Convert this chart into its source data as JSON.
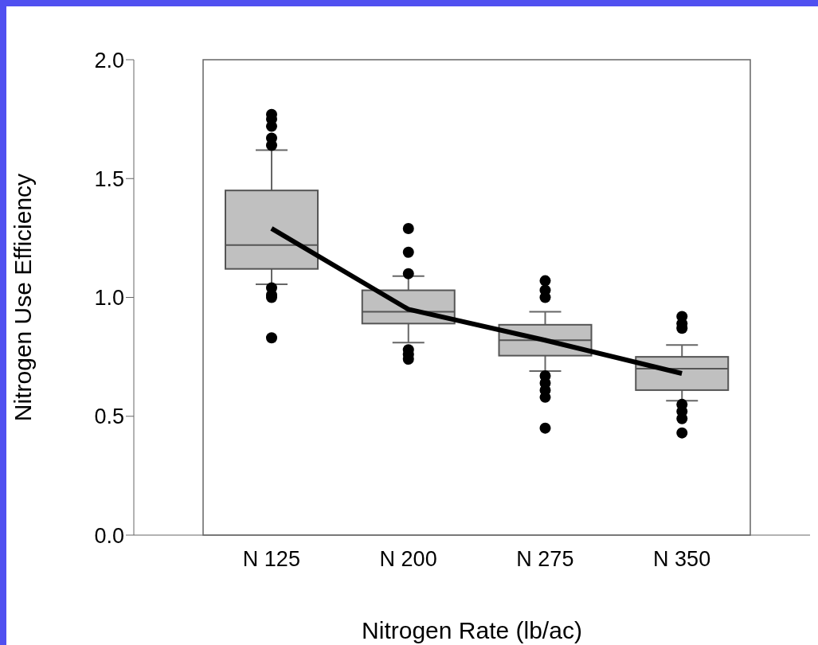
{
  "chart_data": {
    "type": "box",
    "xlabel": "Nitrogen Rate (lb/ac)",
    "ylabel": "Nitrogen Use Efficiency",
    "categories": [
      "N 125",
      "N 200",
      "N 275",
      "N 350"
    ],
    "ylim": [
      0,
      2
    ],
    "yticks": [
      {
        "value": 0,
        "label": "0.0"
      },
      {
        "value": 0.5,
        "label": "0.5"
      },
      {
        "value": 1,
        "label": "1.0"
      },
      {
        "value": 1.5,
        "label": "1.5"
      },
      {
        "value": 2,
        "label": "2.0"
      }
    ],
    "grid": false,
    "series": [
      {
        "color": "#c0c0c0",
        "marker": "circle",
        "boxes": [
          {
            "low": 1.055,
            "q1": 1.12,
            "median": 1.22,
            "q3": 1.45,
            "high": 1.62,
            "outliers": [
              1.77,
              1.75,
              1.72,
              1.67,
              1.64,
              1.04,
              1.01,
              1.0,
              0.83
            ]
          },
          {
            "low": 0.81,
            "q1": 0.89,
            "median": 0.94,
            "q3": 1.03,
            "high": 1.09,
            "outliers": [
              1.29,
              1.19,
              1.1,
              0.78,
              0.76,
              0.74
            ]
          },
          {
            "low": 0.69,
            "q1": 0.755,
            "median": 0.82,
            "q3": 0.885,
            "high": 0.94,
            "outliers": [
              1.07,
              1.03,
              1.0,
              0.67,
              0.64,
              0.61,
              0.58,
              0.45
            ]
          },
          {
            "low": 0.565,
            "q1": 0.61,
            "median": 0.7,
            "q3": 0.75,
            "high": 0.8,
            "outliers": [
              0.92,
              0.89,
              0.87,
              0.55,
              0.52,
              0.49,
              0.43
            ]
          }
        ]
      },
      {
        "type": "line",
        "color": "#000000",
        "values": [
          1.29,
          0.95,
          0.82,
          0.68
        ]
      }
    ]
  }
}
